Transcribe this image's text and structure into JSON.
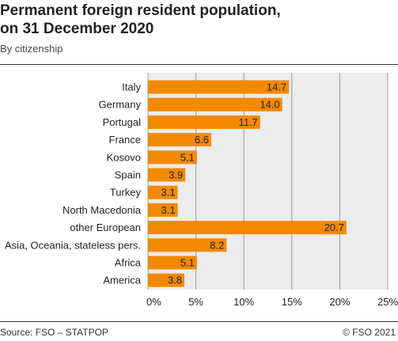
{
  "header": {
    "title_line1": "Permanent foreign resident population,",
    "title_line2": "on 31 December 2020",
    "subtitle": "By citizenship"
  },
  "footer": {
    "source": "Source: FSO – STATPOP",
    "copyright": "© FSO 2021"
  },
  "colors": {
    "bar": "#f28a00",
    "plot_bg": "#ececec",
    "grid": "#9a9a9a"
  },
  "chart_data": {
    "type": "bar",
    "orientation": "horizontal",
    "categories": [
      "Italy",
      "Germany",
      "Portugal",
      "France",
      "Kosovo",
      "Spain",
      "Turkey",
      "North Macedonia",
      "other European",
      "Asia, Oceania, stateless pers.",
      "Africa",
      "America"
    ],
    "values": [
      14.7,
      14.0,
      11.7,
      6.6,
      5.1,
      3.9,
      3.1,
      3.1,
      20.7,
      8.2,
      5.1,
      3.8
    ],
    "value_labels": [
      "14.7",
      "14.0",
      "11.7",
      "6.6",
      "5.1",
      "3.9",
      "3.1",
      "3.1",
      "20.7",
      "8.2",
      "5.1",
      "3.8"
    ],
    "xlim": [
      0,
      25
    ],
    "xticks": [
      0,
      5,
      10,
      15,
      20,
      25
    ],
    "xtick_labels": [
      "0%",
      "5%",
      "10%",
      "15%",
      "20%",
      "25%"
    ],
    "grid": true
  }
}
